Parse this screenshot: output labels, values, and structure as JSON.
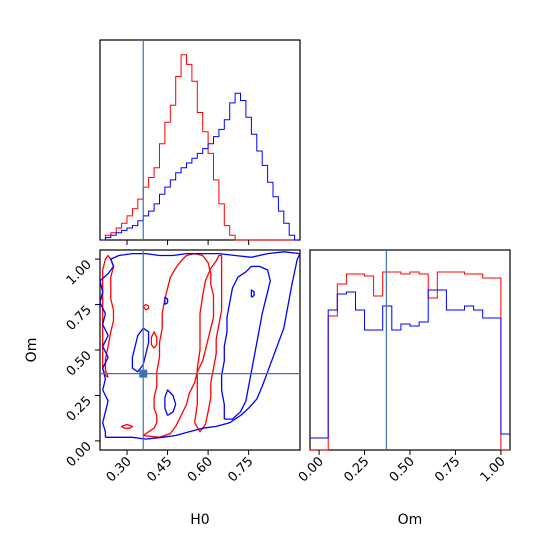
{
  "chart_data": {
    "type": "corner",
    "parameters": [
      "H0",
      "Om"
    ],
    "colors": {
      "red": "#ff0000",
      "blue": "#0000ff",
      "truth": "#3b75af",
      "frame": "#000000"
    },
    "truth": {
      "H0": 0.36,
      "Om": 0.37
    },
    "labels": {
      "xlabel_h0": "H0",
      "xlabel_om": "Om",
      "ylabel_om": "Om"
    },
    "axes": {
      "h0": {
        "range": [
          0.2,
          0.94
        ],
        "ticks": [
          0.3,
          0.45,
          0.6,
          0.75
        ],
        "tick_labels": [
          "0.30",
          "0.45",
          "0.60",
          "0.75"
        ]
      },
      "om": {
        "range": [
          -0.05,
          1.05
        ],
        "ticks": [
          0.0,
          0.25,
          0.5,
          0.75,
          1.0
        ],
        "tick_labels": [
          "0.00",
          "0.25",
          "0.50",
          "0.75",
          "1.00"
        ]
      }
    },
    "hist_h0": {
      "edges": [
        0.2,
        0.22,
        0.24,
        0.26,
        0.28,
        0.3,
        0.32,
        0.34,
        0.36,
        0.38,
        0.4,
        0.42,
        0.44,
        0.46,
        0.48,
        0.5,
        0.52,
        0.54,
        0.56,
        0.58,
        0.6,
        0.62,
        0.64,
        0.66,
        0.68,
        0.7,
        0.72,
        0.74,
        0.76,
        0.78,
        0.8,
        0.82,
        0.84,
        0.86,
        0.88,
        0.9,
        0.92,
        0.94
      ],
      "series": [
        {
          "color": "red",
          "values": [
            0,
            2,
            3,
            5,
            7,
            10,
            13,
            17,
            22,
            26,
            30,
            40,
            49,
            56,
            68,
            77,
            73,
            66,
            53,
            45,
            36,
            25,
            15,
            6,
            2,
            0,
            0,
            0,
            0,
            0,
            0,
            0,
            0,
            0,
            0,
            0,
            0
          ]
        },
        {
          "color": "blue",
          "values": [
            0,
            1,
            2,
            3,
            4,
            5,
            6,
            8,
            10,
            12,
            15,
            19,
            22,
            25,
            28,
            30,
            32,
            34,
            36,
            38,
            40,
            43,
            46,
            50,
            57,
            61,
            58,
            51,
            44,
            37,
            31,
            24,
            18,
            12,
            7,
            2,
            0
          ]
        }
      ]
    },
    "hist_om": {
      "edges": [
        -0.05,
        0.0,
        0.05,
        0.1,
        0.15,
        0.2,
        0.25,
        0.3,
        0.35,
        0.4,
        0.45,
        0.5,
        0.55,
        0.6,
        0.65,
        0.7,
        0.75,
        0.8,
        0.85,
        0.9,
        0.95,
        1.0,
        1.05
      ],
      "series": [
        {
          "color": "red",
          "values": [
            0,
            0,
            0.67,
            0.83,
            0.88,
            0.88,
            0.87,
            0.77,
            0.89,
            0.89,
            0.88,
            0.89,
            0.88,
            0.76,
            0.89,
            0.89,
            0.89,
            0.88,
            0.88,
            0.86,
            0.86,
            0
          ]
        },
        {
          "color": "blue",
          "values": [
            0.06,
            0.06,
            0.7,
            0.78,
            0.79,
            0.7,
            0.6,
            0.6,
            0.72,
            0.6,
            0.63,
            0.62,
            0.64,
            0.8,
            0.8,
            0.7,
            0.7,
            0.72,
            0.7,
            0.66,
            0.66,
            0.08
          ]
        }
      ]
    },
    "contours": [
      {
        "color": "red",
        "kind": "outer",
        "points": [
          [
            0.36,
            0.03
          ],
          [
            0.38,
            0.05
          ],
          [
            0.4,
            0.07
          ],
          [
            0.41,
            0.1
          ],
          [
            0.41,
            0.14
          ],
          [
            0.4,
            0.18
          ],
          [
            0.4,
            0.24
          ],
          [
            0.41,
            0.3
          ],
          [
            0.41,
            0.38
          ],
          [
            0.42,
            0.46
          ],
          [
            0.42,
            0.54
          ],
          [
            0.43,
            0.62
          ],
          [
            0.43,
            0.7
          ],
          [
            0.44,
            0.78
          ],
          [
            0.45,
            0.84
          ],
          [
            0.46,
            0.9
          ],
          [
            0.48,
            0.95
          ],
          [
            0.5,
            0.99
          ],
          [
            0.52,
            1.02
          ],
          [
            0.55,
            1.03
          ],
          [
            0.58,
            1.02
          ],
          [
            0.6,
            0.98
          ],
          [
            0.61,
            0.92
          ],
          [
            0.61,
            0.86
          ],
          [
            0.62,
            0.8
          ],
          [
            0.62,
            0.74
          ],
          [
            0.62,
            0.68
          ],
          [
            0.61,
            0.62
          ],
          [
            0.6,
            0.56
          ],
          [
            0.59,
            0.5
          ],
          [
            0.58,
            0.44
          ],
          [
            0.56,
            0.38
          ],
          [
            0.55,
            0.32
          ],
          [
            0.53,
            0.26
          ],
          [
            0.52,
            0.2
          ],
          [
            0.5,
            0.14
          ],
          [
            0.48,
            0.08
          ],
          [
            0.46,
            0.04
          ],
          [
            0.42,
            0.02
          ],
          [
            0.36,
            0.03
          ]
        ]
      },
      {
        "color": "red",
        "kind": "inner",
        "points": [
          [
            0.55,
            0.1
          ],
          [
            0.56,
            0.2
          ],
          [
            0.56,
            0.3
          ],
          [
            0.56,
            0.4
          ],
          [
            0.57,
            0.5
          ],
          [
            0.57,
            0.6
          ],
          [
            0.57,
            0.7
          ],
          [
            0.58,
            0.8
          ],
          [
            0.59,
            0.88
          ],
          [
            0.61,
            0.95
          ],
          [
            0.63,
            0.99
          ],
          [
            0.64,
            1.02
          ],
          [
            0.65,
            1.02
          ],
          [
            0.65,
            0.98
          ],
          [
            0.65,
            0.92
          ],
          [
            0.65,
            0.85
          ],
          [
            0.65,
            0.78
          ],
          [
            0.65,
            0.72
          ],
          [
            0.64,
            0.64
          ],
          [
            0.63,
            0.56
          ],
          [
            0.63,
            0.48
          ],
          [
            0.62,
            0.4
          ],
          [
            0.61,
            0.32
          ],
          [
            0.61,
            0.24
          ],
          [
            0.6,
            0.16
          ],
          [
            0.59,
            0.09
          ],
          [
            0.57,
            0.05
          ],
          [
            0.55,
            0.1
          ]
        ]
      },
      {
        "color": "red",
        "kind": "blob",
        "points": [
          [
            0.23,
            0.35
          ],
          [
            0.22,
            0.39
          ],
          [
            0.22,
            0.45
          ],
          [
            0.23,
            0.52
          ],
          [
            0.24,
            0.6
          ],
          [
            0.25,
            0.66
          ],
          [
            0.25,
            0.72
          ],
          [
            0.24,
            0.78
          ],
          [
            0.24,
            0.84
          ],
          [
            0.24,
            0.9
          ],
          [
            0.25,
            0.96
          ],
          [
            0.24,
            1.0
          ],
          [
            0.23,
            1.02
          ],
          [
            0.22,
            1.0
          ],
          [
            0.21,
            0.94
          ],
          [
            0.21,
            0.86
          ],
          [
            0.21,
            0.78
          ],
          [
            0.21,
            0.7
          ],
          [
            0.21,
            0.62
          ],
          [
            0.21,
            0.54
          ],
          [
            0.21,
            0.46
          ],
          [
            0.21,
            0.4
          ],
          [
            0.22,
            0.36
          ],
          [
            0.23,
            0.35
          ]
        ]
      },
      {
        "color": "red",
        "kind": "blob",
        "points": [
          [
            0.4,
            0.51
          ],
          [
            0.41,
            0.53
          ],
          [
            0.41,
            0.57
          ],
          [
            0.4,
            0.6
          ],
          [
            0.39,
            0.57
          ],
          [
            0.39,
            0.53
          ],
          [
            0.4,
            0.51
          ]
        ]
      },
      {
        "color": "red",
        "kind": "blob",
        "points": [
          [
            0.37,
            0.72
          ],
          [
            0.38,
            0.73
          ],
          [
            0.38,
            0.74
          ],
          [
            0.37,
            0.75
          ],
          [
            0.36,
            0.74
          ],
          [
            0.37,
            0.72
          ]
        ]
      },
      {
        "color": "red",
        "kind": "blob",
        "points": [
          [
            0.29,
            0.07
          ],
          [
            0.31,
            0.07
          ],
          [
            0.32,
            0.08
          ],
          [
            0.3,
            0.09
          ],
          [
            0.28,
            0.08
          ],
          [
            0.29,
            0.07
          ]
        ]
      },
      {
        "color": "blue",
        "kind": "outer",
        "points": [
          [
            0.22,
            0.02
          ],
          [
            0.27,
            0.02
          ],
          [
            0.32,
            0.02
          ],
          [
            0.37,
            0.01
          ],
          [
            0.43,
            0.02
          ],
          [
            0.48,
            0.03
          ],
          [
            0.53,
            0.05
          ],
          [
            0.58,
            0.07
          ],
          [
            0.63,
            0.08
          ],
          [
            0.68,
            0.1
          ],
          [
            0.72,
            0.14
          ],
          [
            0.75,
            0.18
          ],
          [
            0.78,
            0.23
          ],
          [
            0.8,
            0.3
          ],
          [
            0.82,
            0.38
          ],
          [
            0.84,
            0.46
          ],
          [
            0.86,
            0.54
          ],
          [
            0.88,
            0.62
          ],
          [
            0.89,
            0.7
          ],
          [
            0.9,
            0.78
          ],
          [
            0.91,
            0.86
          ],
          [
            0.92,
            0.93
          ],
          [
            0.93,
            1.0
          ],
          [
            0.94,
            1.03
          ],
          [
            0.88,
            1.04
          ],
          [
            0.82,
            1.03
          ],
          [
            0.76,
            1.01
          ],
          [
            0.7,
            1.02
          ],
          [
            0.64,
            1.03
          ],
          [
            0.58,
            1.03
          ],
          [
            0.52,
            1.03
          ],
          [
            0.47,
            1.02
          ],
          [
            0.42,
            1.02
          ],
          [
            0.37,
            1.03
          ],
          [
            0.32,
            1.03
          ],
          [
            0.27,
            1.02
          ],
          [
            0.24,
            1.0
          ],
          [
            0.25,
            0.96
          ],
          [
            0.23,
            0.92
          ],
          [
            0.2,
            0.88
          ],
          [
            0.21,
            0.82
          ],
          [
            0.2,
            0.76
          ],
          [
            0.22,
            0.7
          ],
          [
            0.21,
            0.64
          ],
          [
            0.23,
            0.58
          ],
          [
            0.21,
            0.52
          ],
          [
            0.23,
            0.46
          ],
          [
            0.21,
            0.4
          ],
          [
            0.22,
            0.34
          ],
          [
            0.21,
            0.28
          ],
          [
            0.23,
            0.22
          ],
          [
            0.22,
            0.16
          ],
          [
            0.21,
            0.1
          ],
          [
            0.22,
            0.05
          ],
          [
            0.22,
            0.02
          ]
        ]
      },
      {
        "color": "blue",
        "kind": "inner",
        "points": [
          [
            0.66,
            0.12
          ],
          [
            0.66,
            0.2
          ],
          [
            0.65,
            0.28
          ],
          [
            0.65,
            0.36
          ],
          [
            0.66,
            0.44
          ],
          [
            0.66,
            0.52
          ],
          [
            0.67,
            0.6
          ],
          [
            0.67,
            0.68
          ],
          [
            0.68,
            0.76
          ],
          [
            0.69,
            0.84
          ],
          [
            0.71,
            0.9
          ],
          [
            0.74,
            0.93
          ],
          [
            0.76,
            0.96
          ],
          [
            0.79,
            0.96
          ],
          [
            0.82,
            0.94
          ],
          [
            0.83,
            0.88
          ],
          [
            0.82,
            0.82
          ],
          [
            0.81,
            0.76
          ],
          [
            0.8,
            0.7
          ],
          [
            0.79,
            0.62
          ],
          [
            0.78,
            0.54
          ],
          [
            0.77,
            0.46
          ],
          [
            0.76,
            0.38
          ],
          [
            0.75,
            0.3
          ],
          [
            0.74,
            0.22
          ],
          [
            0.72,
            0.16
          ],
          [
            0.69,
            0.12
          ],
          [
            0.66,
            0.12
          ]
        ]
      },
      {
        "color": "blue",
        "kind": "inner",
        "points": [
          [
            0.32,
            0.4
          ],
          [
            0.32,
            0.46
          ],
          [
            0.33,
            0.52
          ],
          [
            0.34,
            0.58
          ],
          [
            0.36,
            0.62
          ],
          [
            0.38,
            0.6
          ],
          [
            0.38,
            0.54
          ],
          [
            0.37,
            0.48
          ],
          [
            0.36,
            0.42
          ],
          [
            0.34,
            0.38
          ],
          [
            0.32,
            0.4
          ]
        ]
      },
      {
        "color": "blue",
        "kind": "blob",
        "points": [
          [
            0.45,
            0.14
          ],
          [
            0.47,
            0.16
          ],
          [
            0.48,
            0.2
          ],
          [
            0.47,
            0.25
          ],
          [
            0.45,
            0.28
          ],
          [
            0.44,
            0.24
          ],
          [
            0.44,
            0.18
          ],
          [
            0.45,
            0.14
          ]
        ]
      },
      {
        "color": "blue",
        "kind": "blob",
        "points": [
          [
            0.44,
            0.75
          ],
          [
            0.45,
            0.76
          ],
          [
            0.45,
            0.78
          ],
          [
            0.44,
            0.79
          ],
          [
            0.44,
            0.75
          ]
        ]
      },
      {
        "color": "blue",
        "kind": "blob",
        "points": [
          [
            0.76,
            0.79
          ],
          [
            0.77,
            0.8
          ],
          [
            0.77,
            0.82
          ],
          [
            0.76,
            0.83
          ],
          [
            0.76,
            0.79
          ]
        ]
      }
    ]
  }
}
